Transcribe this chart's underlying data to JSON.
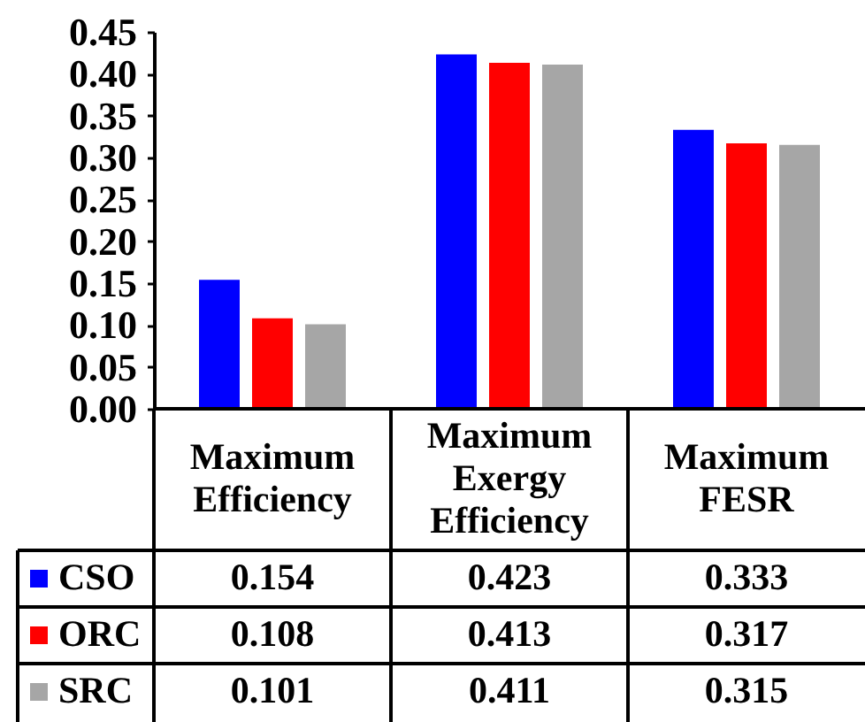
{
  "chart_data": {
    "type": "bar",
    "categories": [
      "Maximum Efficiency",
      "Maximum Exergy Efficiency",
      "Maximum FESR"
    ],
    "series": [
      {
        "name": "CSO",
        "color": "#0000ff",
        "values": [
          0.154,
          0.423,
          0.333
        ]
      },
      {
        "name": "ORC",
        "color": "#ff0000",
        "values": [
          0.108,
          0.413,
          0.317
        ]
      },
      {
        "name": "SRC",
        "color": "#a6a6a6",
        "values": [
          0.101,
          0.411,
          0.315
        ]
      }
    ],
    "ylim": [
      0,
      0.45
    ],
    "yticks": [
      {
        "value": 0,
        "label": "0.00"
      },
      0.05,
      {
        "value": 0.1,
        "label": "0.10"
      },
      0.15,
      {
        "value": 0.2,
        "label": "0.20"
      },
      0.25,
      {
        "value": 0.3,
        "label": "0.30"
      },
      0.35,
      {
        "value": 0.4,
        "label": "0.40"
      },
      0.45
    ],
    "data_labels": true,
    "legend": "bottom left",
    "grid": false
  }
}
